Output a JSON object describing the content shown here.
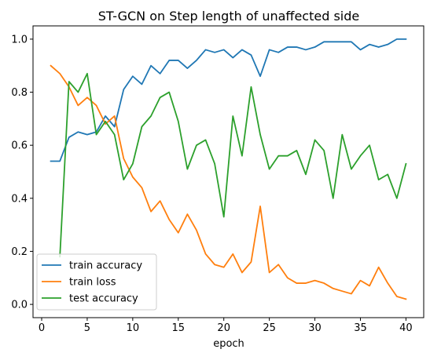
{
  "chart_data": {
    "type": "line",
    "title": "ST-GCN on Step length of unaffected side",
    "xlabel": "epoch",
    "ylabel": "",
    "xlim": [
      -0.95,
      41.95
    ],
    "ylim": [
      -0.05,
      1.05
    ],
    "xticks": [
      0,
      5,
      10,
      15,
      20,
      25,
      30,
      35,
      40
    ],
    "yticks": [
      0.0,
      0.2,
      0.4,
      0.6,
      0.8,
      1.0
    ],
    "xtick_labels": [
      "0",
      "5",
      "10",
      "15",
      "20",
      "25",
      "30",
      "35",
      "40"
    ],
    "ytick_labels": [
      "0.0",
      "0.2",
      "0.4",
      "0.6",
      "0.8",
      "1.0"
    ],
    "grid": false,
    "legend_position": "lower-left",
    "x": [
      1,
      2,
      3,
      4,
      5,
      6,
      7,
      8,
      9,
      10,
      11,
      12,
      13,
      14,
      15,
      16,
      17,
      18,
      19,
      20,
      21,
      22,
      23,
      24,
      25,
      26,
      27,
      28,
      29,
      30,
      31,
      32,
      33,
      34,
      35,
      36,
      37,
      38,
      39,
      40
    ],
    "series": [
      {
        "name": "train accuracy",
        "color": "#1f77b4",
        "values": [
          0.54,
          0.54,
          0.63,
          0.65,
          0.64,
          0.65,
          0.71,
          0.67,
          0.81,
          0.86,
          0.83,
          0.9,
          0.87,
          0.92,
          0.92,
          0.89,
          0.92,
          0.96,
          0.95,
          0.96,
          0.93,
          0.96,
          0.94,
          0.86,
          0.96,
          0.95,
          0.97,
          0.97,
          0.96,
          0.97,
          0.99,
          0.99,
          0.99,
          0.99,
          0.96,
          0.98,
          0.97,
          0.98,
          1.0,
          1.0
        ]
      },
      {
        "name": "train loss",
        "color": "#ff7f0e",
        "values": [
          0.9,
          0.87,
          0.82,
          0.75,
          0.78,
          0.75,
          0.68,
          0.71,
          0.55,
          0.48,
          0.44,
          0.35,
          0.39,
          0.32,
          0.27,
          0.34,
          0.28,
          0.19,
          0.15,
          0.14,
          0.19,
          0.12,
          0.16,
          0.37,
          0.12,
          0.15,
          0.1,
          0.08,
          0.08,
          0.09,
          0.08,
          0.06,
          0.05,
          0.04,
          0.09,
          0.07,
          0.14,
          0.08,
          0.03,
          0.02
        ]
      },
      {
        "name": "test accuracy",
        "color": "#2ca02c",
        "values": [
          null,
          0.18,
          0.84,
          0.8,
          0.87,
          0.64,
          0.69,
          0.64,
          0.47,
          0.53,
          0.67,
          0.71,
          0.78,
          0.8,
          0.69,
          0.51,
          0.6,
          0.62,
          0.53,
          0.33,
          0.71,
          0.56,
          0.82,
          0.64,
          0.51,
          0.56,
          0.56,
          0.58,
          0.49,
          0.62,
          0.58,
          0.4,
          0.64,
          0.51,
          0.56,
          0.6,
          0.47,
          0.49,
          0.4,
          0.53
        ]
      }
    ]
  }
}
